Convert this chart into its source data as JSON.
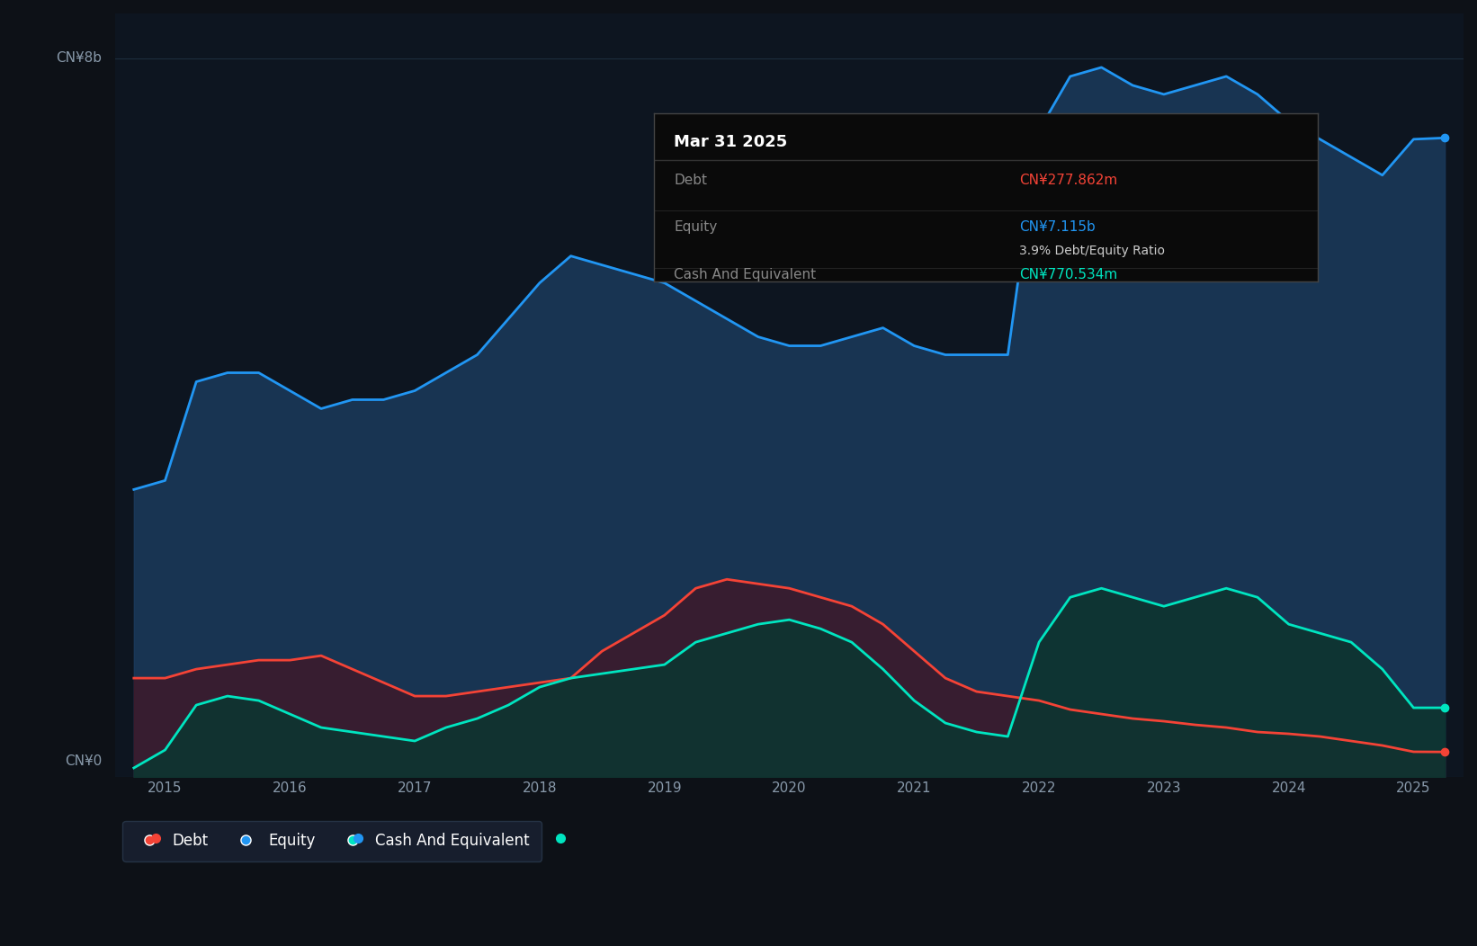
{
  "background_color": "#0d1117",
  "plot_bg_color": "#0d1520",
  "grid_color": "#1e2d3d",
  "title_text": "Mar 31 2025",
  "ylabel_top": "CN¥8b",
  "ylabel_bottom": "CN¥0",
  "equity_color": "#2196f3",
  "debt_color": "#f44336",
  "cash_color": "#00e5c0",
  "equity_fill": "#1a3a5c",
  "debt_fill": "#3d1a2a",
  "cash_fill": "#0d3530",
  "tooltip_bg": "#0a0a0a",
  "tooltip_border": "#333333",
  "years": [
    2015,
    2016,
    2017,
    2018,
    2019,
    2020,
    2021,
    2022,
    2023,
    2024,
    2025
  ],
  "equity_data": {
    "x": [
      2014.75,
      2015.0,
      2015.25,
      2015.5,
      2015.75,
      2016.0,
      2016.25,
      2016.5,
      2016.75,
      2017.0,
      2017.25,
      2017.5,
      2017.75,
      2018.0,
      2018.25,
      2018.5,
      2018.75,
      2019.0,
      2019.25,
      2019.5,
      2019.75,
      2020.0,
      2020.25,
      2020.5,
      2020.75,
      2021.0,
      2021.25,
      2021.5,
      2021.75,
      2022.0,
      2022.25,
      2022.5,
      2022.75,
      2023.0,
      2023.25,
      2023.5,
      2023.75,
      2024.0,
      2024.25,
      2024.5,
      2024.75,
      2025.0,
      2025.25
    ],
    "y": [
      3.2,
      3.3,
      4.4,
      4.5,
      4.5,
      4.3,
      4.1,
      4.2,
      4.2,
      4.3,
      4.5,
      4.7,
      5.1,
      5.5,
      5.8,
      5.7,
      5.6,
      5.5,
      5.3,
      5.1,
      4.9,
      4.8,
      4.8,
      4.9,
      5.0,
      4.8,
      4.7,
      4.7,
      4.7,
      7.2,
      7.8,
      7.9,
      7.7,
      7.6,
      7.7,
      7.8,
      7.6,
      7.3,
      7.1,
      6.9,
      6.7,
      7.1,
      7.115
    ]
  },
  "debt_data": {
    "x": [
      2014.75,
      2015.0,
      2015.25,
      2015.5,
      2015.75,
      2016.0,
      2016.25,
      2016.5,
      2016.75,
      2017.0,
      2017.25,
      2017.5,
      2017.75,
      2018.0,
      2018.25,
      2018.5,
      2018.75,
      2019.0,
      2019.25,
      2019.5,
      2019.75,
      2020.0,
      2020.25,
      2020.5,
      2020.75,
      2021.0,
      2021.25,
      2021.5,
      2021.75,
      2022.0,
      2022.25,
      2022.5,
      2022.75,
      2023.0,
      2023.25,
      2023.5,
      2023.75,
      2024.0,
      2024.25,
      2024.5,
      2024.75,
      2025.0,
      2025.25
    ],
    "y": [
      1.1,
      1.1,
      1.2,
      1.25,
      1.3,
      1.3,
      1.35,
      1.2,
      1.05,
      0.9,
      0.9,
      0.95,
      1.0,
      1.05,
      1.1,
      1.4,
      1.6,
      1.8,
      2.1,
      2.2,
      2.15,
      2.1,
      2.0,
      1.9,
      1.7,
      1.4,
      1.1,
      0.95,
      0.9,
      0.85,
      0.75,
      0.7,
      0.65,
      0.62,
      0.58,
      0.55,
      0.5,
      0.48,
      0.45,
      0.4,
      0.35,
      0.28,
      0.278
    ]
  },
  "cash_data": {
    "x": [
      2014.75,
      2015.0,
      2015.25,
      2015.5,
      2015.75,
      2016.0,
      2016.25,
      2016.5,
      2016.75,
      2017.0,
      2017.25,
      2017.5,
      2017.75,
      2018.0,
      2018.25,
      2018.5,
      2018.75,
      2019.0,
      2019.25,
      2019.5,
      2019.75,
      2020.0,
      2020.25,
      2020.5,
      2020.75,
      2021.0,
      2021.25,
      2021.5,
      2021.75,
      2022.0,
      2022.25,
      2022.5,
      2022.75,
      2023.0,
      2023.25,
      2023.5,
      2023.75,
      2024.0,
      2024.25,
      2024.5,
      2024.75,
      2025.0,
      2025.25
    ],
    "y": [
      0.1,
      0.3,
      0.8,
      0.9,
      0.85,
      0.7,
      0.55,
      0.5,
      0.45,
      0.4,
      0.55,
      0.65,
      0.8,
      1.0,
      1.1,
      1.15,
      1.2,
      1.25,
      1.5,
      1.6,
      1.7,
      1.75,
      1.65,
      1.5,
      1.2,
      0.85,
      0.6,
      0.5,
      0.45,
      1.5,
      2.0,
      2.1,
      2.0,
      1.9,
      2.0,
      2.1,
      2.0,
      1.7,
      1.6,
      1.5,
      1.2,
      0.77,
      0.77
    ]
  },
  "ylim": [
    0,
    8.5
  ],
  "xlim": [
    2014.6,
    2025.4
  ],
  "xticks": [
    2015,
    2016,
    2017,
    2018,
    2019,
    2020,
    2021,
    2022,
    2023,
    2024,
    2025
  ],
  "yticks_labels": [
    "CN¥0",
    "CN¥8b"
  ],
  "tooltip": {
    "date": "Mar 31 2025",
    "debt_label": "Debt",
    "debt_value": "CN¥277.862m",
    "equity_label": "Equity",
    "equity_value": "CN¥7.115b",
    "ratio": "3.9% Debt/Equity Ratio",
    "cash_label": "Cash And Equivalent",
    "cash_value": "CN¥770.534m"
  },
  "legend": [
    {
      "label": "Debt",
      "color": "#f44336"
    },
    {
      "label": "Equity",
      "color": "#2196f3"
    },
    {
      "label": "Cash And Equivalent",
      "color": "#00e5c0"
    }
  ]
}
